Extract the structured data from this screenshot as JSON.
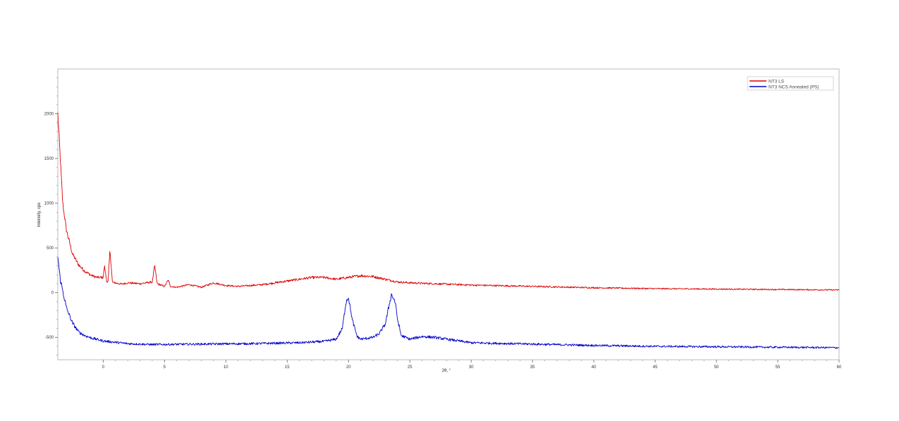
{
  "chart_data": {
    "type": "line",
    "title": "",
    "xlabel": "2θ, °",
    "ylabel": "Intensity, cps",
    "xlim": [
      -3.7,
      60
    ],
    "ylim": [
      -750,
      2500
    ],
    "x_ticks": [
      0,
      5,
      10,
      15,
      20,
      25,
      30,
      35,
      40,
      45,
      50,
      55,
      60
    ],
    "x_tick_labels": [
      "0",
      "5",
      "10",
      "15",
      "20",
      "25",
      "30",
      "35",
      "40",
      "45",
      "50",
      "55",
      "60"
    ],
    "y_ticks": [
      -500,
      0,
      500,
      1000,
      1500,
      2000
    ],
    "y_tick_labels": [
      "-500",
      "0",
      "500",
      "1000",
      "1500",
      "2000"
    ],
    "grid": false,
    "legend_position": "top-right",
    "series": [
      {
        "name": "NT3 LS",
        "color": "#dd0000",
        "points": [
          [
            -3.7,
            2000
          ],
          [
            -3.5,
            1500
          ],
          [
            -3.3,
            1000
          ],
          [
            -3.0,
            700
          ],
          [
            -2.5,
            430
          ],
          [
            -2.0,
            310
          ],
          [
            -1.5,
            240
          ],
          [
            -1.0,
            195
          ],
          [
            -0.5,
            170
          ],
          [
            0,
            170
          ],
          [
            0.1,
            300
          ],
          [
            0.3,
            120
          ],
          [
            0.4,
            120
          ],
          [
            0.55,
            480
          ],
          [
            0.75,
            115
          ],
          [
            1.5,
            95
          ],
          [
            2.0,
            110
          ],
          [
            3.0,
            100
          ],
          [
            4.0,
            120
          ],
          [
            4.2,
            300
          ],
          [
            4.4,
            100
          ],
          [
            5.0,
            70
          ],
          [
            5.3,
            140
          ],
          [
            5.5,
            70
          ],
          [
            6.0,
            60
          ],
          [
            7.0,
            90
          ],
          [
            8.0,
            60
          ],
          [
            9.0,
            110
          ],
          [
            10.0,
            80
          ],
          [
            11.0,
            70
          ],
          [
            12.0,
            80
          ],
          [
            13.0,
            90
          ],
          [
            14.0,
            110
          ],
          [
            15.0,
            130
          ],
          [
            16.0,
            150
          ],
          [
            17.0,
            170
          ],
          [
            18.0,
            170
          ],
          [
            19.0,
            150
          ],
          [
            20.0,
            170
          ],
          [
            21.0,
            190
          ],
          [
            22.0,
            180
          ],
          [
            23.0,
            150
          ],
          [
            24.0,
            120
          ],
          [
            25.0,
            110
          ],
          [
            27.0,
            100
          ],
          [
            30.0,
            85
          ],
          [
            35.0,
            70
          ],
          [
            40.0,
            55
          ],
          [
            45.0,
            45
          ],
          [
            50.0,
            40
          ],
          [
            55.0,
            35
          ],
          [
            60.0,
            30
          ]
        ]
      },
      {
        "name": "NT3 NCS Annealed (PS)",
        "color": "#0000cc",
        "points": [
          [
            -3.7,
            400
          ],
          [
            -3.5,
            150
          ],
          [
            -3.0,
            -170
          ],
          [
            -2.5,
            -340
          ],
          [
            -2.0,
            -440
          ],
          [
            -1.5,
            -480
          ],
          [
            -1.0,
            -505
          ],
          [
            0,
            -540
          ],
          [
            2.0,
            -570
          ],
          [
            4.0,
            -580
          ],
          [
            8.0,
            -575
          ],
          [
            12.0,
            -570
          ],
          [
            16.0,
            -560
          ],
          [
            18.0,
            -545
          ],
          [
            19.0,
            -520
          ],
          [
            19.5,
            -400
          ],
          [
            19.8,
            -100
          ],
          [
            20.0,
            -50
          ],
          [
            20.3,
            -300
          ],
          [
            20.7,
            -490
          ],
          [
            21.0,
            -520
          ],
          [
            22.0,
            -500
          ],
          [
            22.5,
            -460
          ],
          [
            23.0,
            -350
          ],
          [
            23.3,
            -150
          ],
          [
            23.5,
            -20
          ],
          [
            23.8,
            -100
          ],
          [
            24.0,
            -300
          ],
          [
            24.3,
            -480
          ],
          [
            25.0,
            -520
          ],
          [
            26.0,
            -490
          ],
          [
            27.0,
            -500
          ],
          [
            30.0,
            -560
          ],
          [
            35.0,
            -575
          ],
          [
            40.0,
            -590
          ],
          [
            45.0,
            -600
          ],
          [
            50.0,
            -605
          ],
          [
            55.0,
            -610
          ],
          [
            60.0,
            -615
          ]
        ]
      }
    ]
  }
}
